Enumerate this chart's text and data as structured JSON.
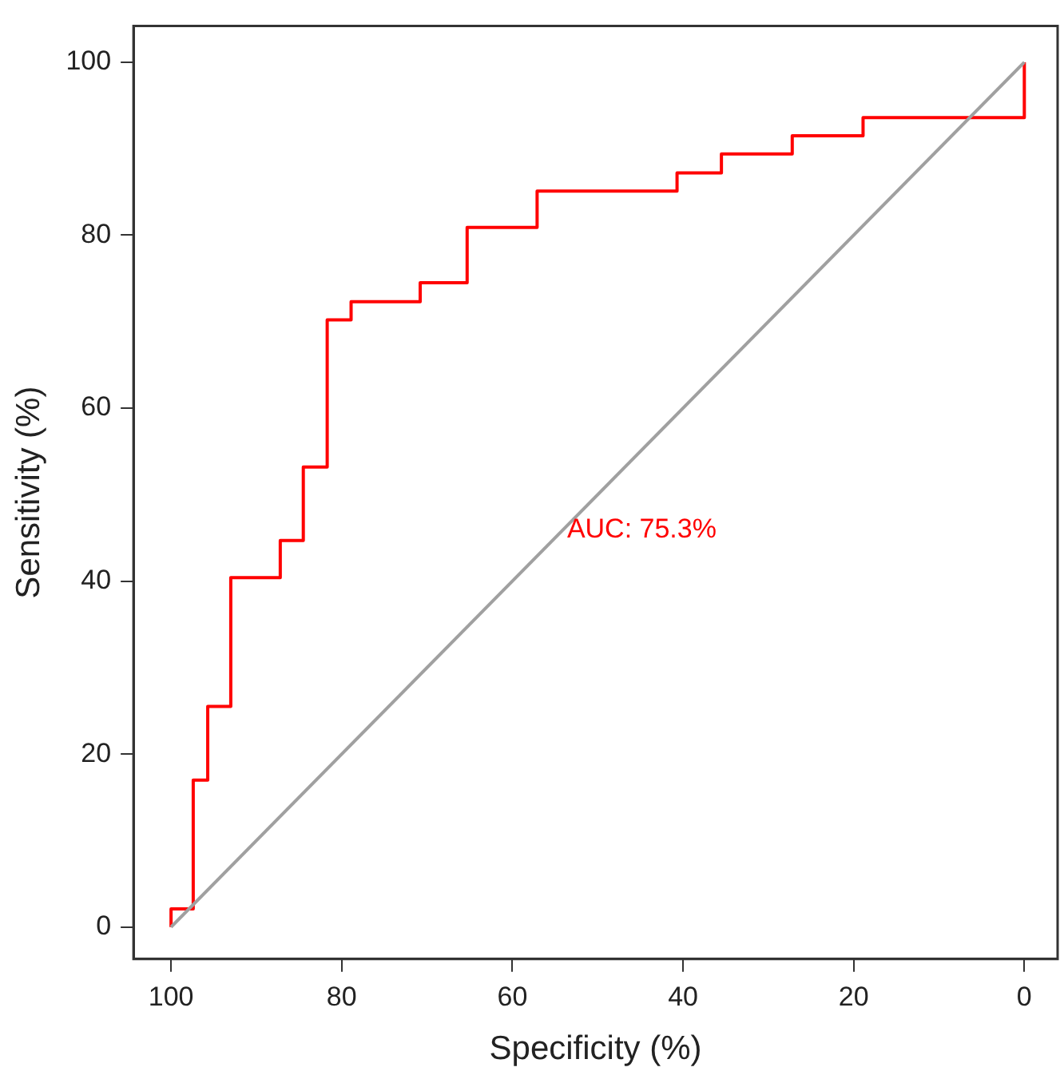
{
  "chart_data": {
    "type": "step",
    "xlabel": "Specificity (%)",
    "ylabel": "Sensitivity (%)",
    "annotations": [
      "AUC: 75.3%"
    ],
    "series": [
      {
        "color": "#ff0000",
        "x": [
          100,
          100,
          97.4,
          95.7,
          93.0,
          87.2,
          84.5,
          81.7,
          78.9,
          70.8,
          65.3,
          57.1,
          40.7,
          35.5,
          27.2,
          18.9,
          0
        ],
        "values": [
          0,
          2.1,
          17.0,
          25.5,
          40.4,
          44.7,
          53.2,
          70.2,
          72.3,
          74.5,
          80.9,
          85.1,
          87.2,
          89.4,
          91.5,
          93.6,
          100
        ]
      },
      {
        "type": "line",
        "color": "#a0a0a0",
        "x": [
          100,
          0
        ],
        "values": [
          0,
          100
        ]
      }
    ],
    "xlim": [
      104.4,
      -3.9
    ],
    "ylim": [
      -3.7,
      104.2
    ],
    "xticks": [
      100,
      80,
      60,
      40,
      20,
      0
    ],
    "yticks": [
      0,
      20,
      40,
      60,
      80,
      100
    ],
    "grid": false,
    "legend": false
  }
}
